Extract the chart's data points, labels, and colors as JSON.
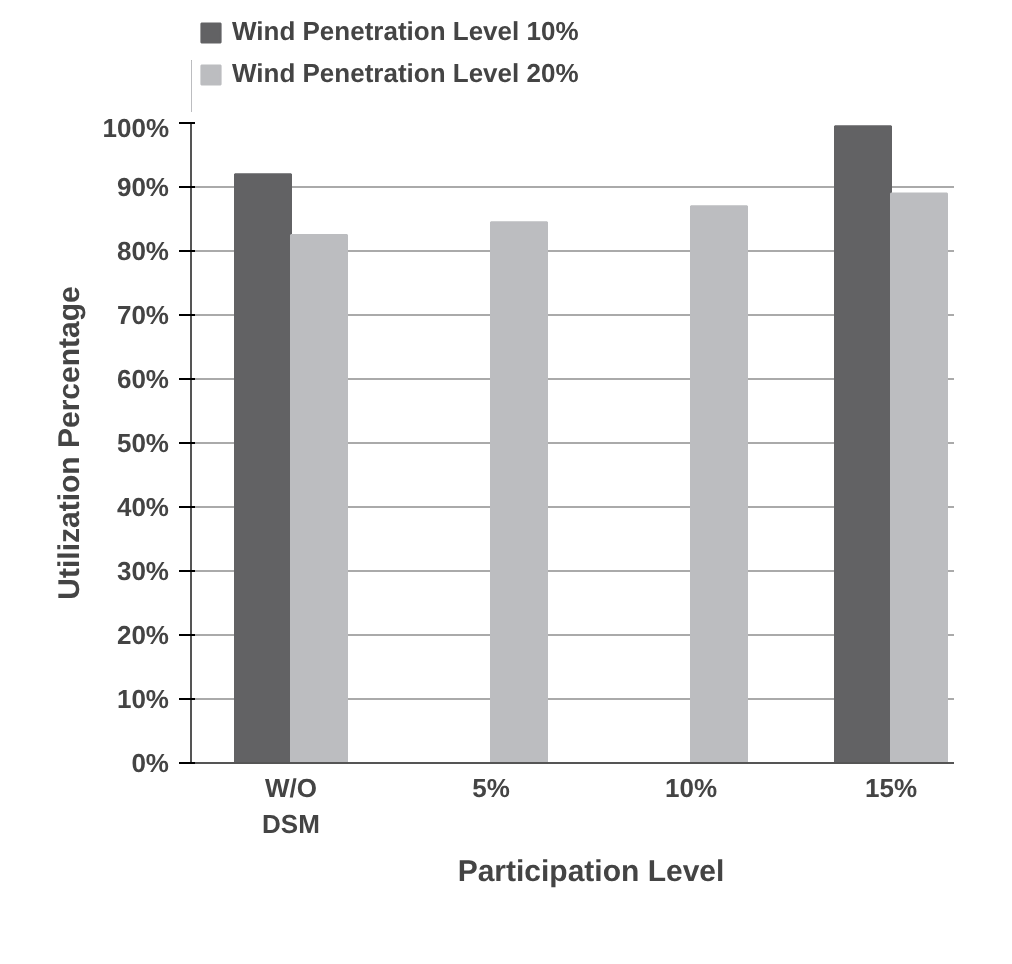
{
  "chart_data": {
    "type": "bar",
    "xlabel": "Participation Level",
    "ylabel": "Utilization Percentage",
    "categories": [
      "W/O\nDSM",
      "5%",
      "10%",
      "15%"
    ],
    "series": [
      {
        "name": "Wind Penetration Level 10%",
        "color": "#626264",
        "values": [
          92,
          null,
          null,
          99.5
        ]
      },
      {
        "name": "Wind Penetration Level 20%",
        "color": "#bcbdc0",
        "values": [
          82.5,
          84.5,
          87,
          89
        ]
      }
    ],
    "ylim": [
      0,
      100
    ],
    "yticks": [
      {
        "value": 0,
        "label": "0%"
      },
      {
        "value": 10,
        "label": "10%"
      },
      {
        "value": 20,
        "label": "20%"
      },
      {
        "value": 30,
        "label": "30%"
      },
      {
        "value": 40,
        "label": "40%"
      },
      {
        "value": 50,
        "label": "50%"
      },
      {
        "value": 60,
        "label": "60%"
      },
      {
        "value": 70,
        "label": "70%"
      },
      {
        "value": 80,
        "label": "80%"
      },
      {
        "value": 90,
        "label": "90%"
      },
      {
        "value": 100,
        "label": "100%"
      }
    ],
    "grid": "y",
    "legend": "top"
  }
}
